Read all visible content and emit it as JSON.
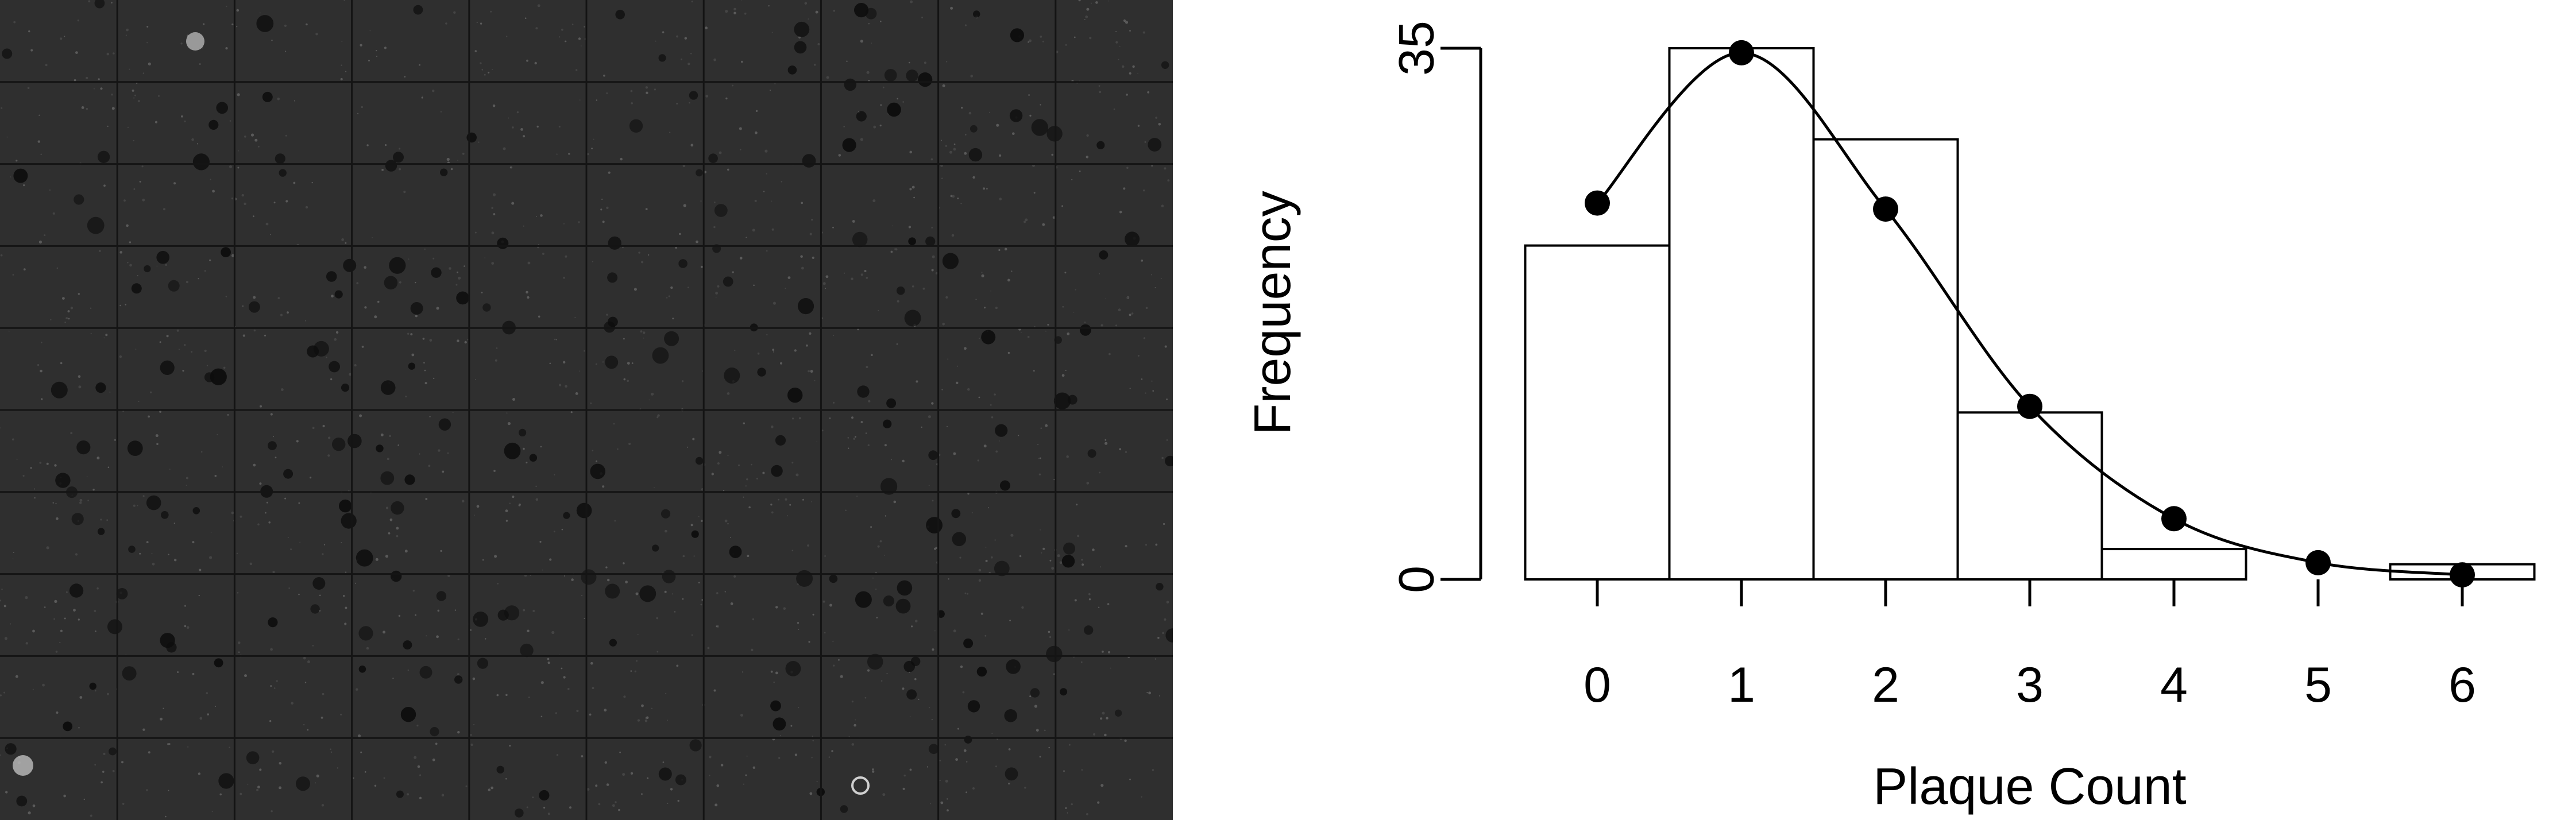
{
  "colors": {
    "plate_background": "#2f2f2f",
    "plate_grid_line": "#141414",
    "plaque": "#0d0d0d",
    "bar_fill": "#ffffff",
    "ink": "#000000"
  },
  "plate": {
    "grid_rows": 10,
    "grid_cols": 10
  },
  "chart_data": {
    "type": "bar",
    "title": "",
    "xlabel": "Plaque Count",
    "ylabel": "Frequency",
    "categories": [
      "0",
      "1",
      "2",
      "3",
      "4",
      "5",
      "6"
    ],
    "x_tick_labels": [
      "0",
      "1",
      "2",
      "3",
      "4",
      "5",
      "6"
    ],
    "y_tick_labels": [
      "0",
      "35"
    ],
    "ylim": [
      0,
      35
    ],
    "grid": false,
    "series": [
      {
        "type": "bar",
        "values": [
          22,
          35,
          29,
          11,
          2,
          0,
          1
        ]
      },
      {
        "type": "line-with-points",
        "values": [
          24.8,
          34.7,
          24.4,
          11.4,
          4.0,
          1.1,
          0.3
        ]
      }
    ]
  }
}
